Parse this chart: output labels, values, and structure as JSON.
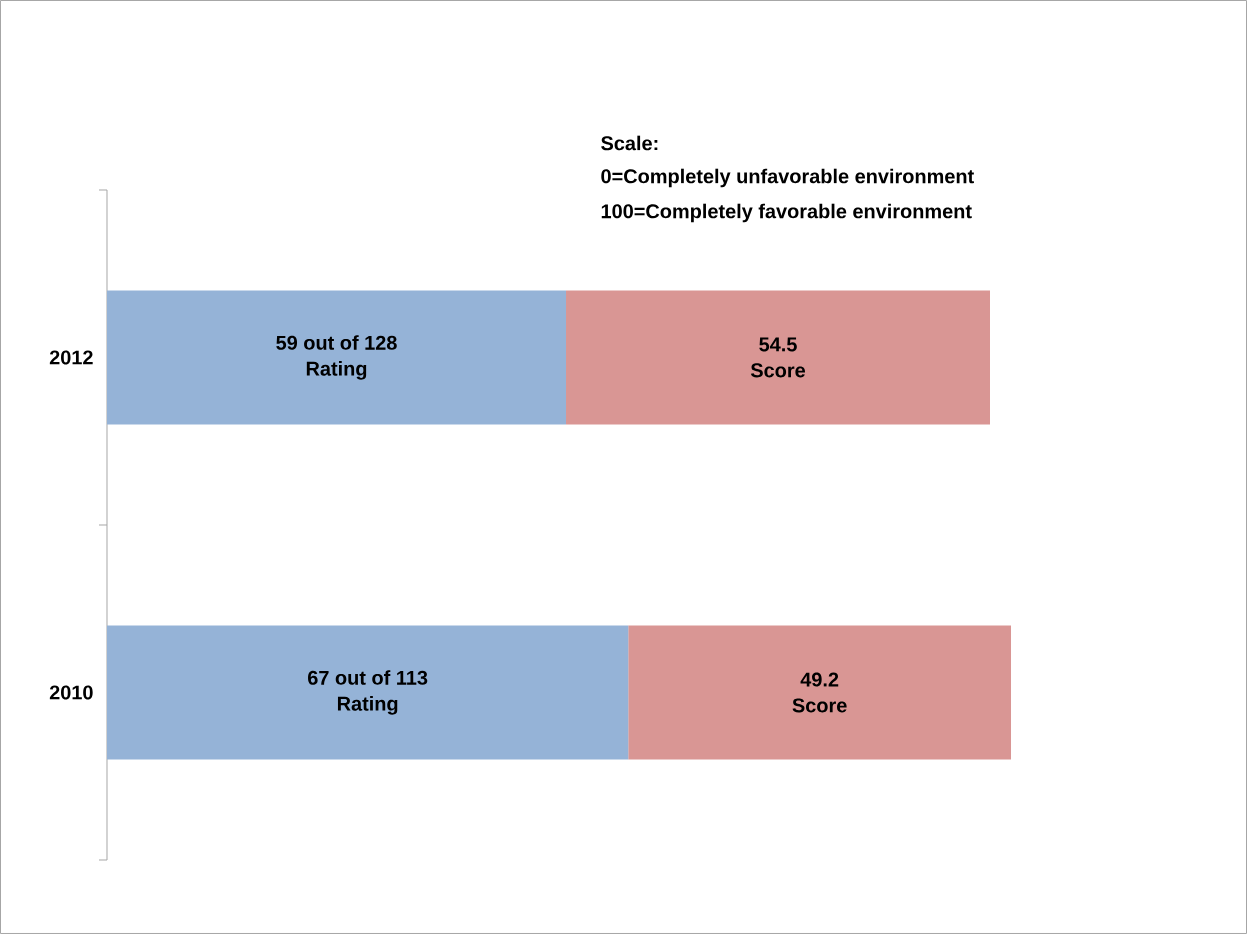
{
  "chart_data": {
    "type": "bar",
    "orientation": "horizontal",
    "stacked": true,
    "categories": [
      "2012",
      "2010"
    ],
    "series": [
      {
        "name": "Rating",
        "color": "#95b3d7",
        "values": [
          59,
          67
        ],
        "value_labels": [
          "59 out of 128",
          "67 out of 113"
        ]
      },
      {
        "name": "Score",
        "color": "#d99694",
        "values": [
          54.5,
          49.2
        ],
        "value_labels": [
          "54.5",
          "49.2"
        ]
      }
    ],
    "annotations": [
      "Scale:",
      "0=Completely unfavorable environment",
      "100=Completely favorable environment"
    ]
  }
}
